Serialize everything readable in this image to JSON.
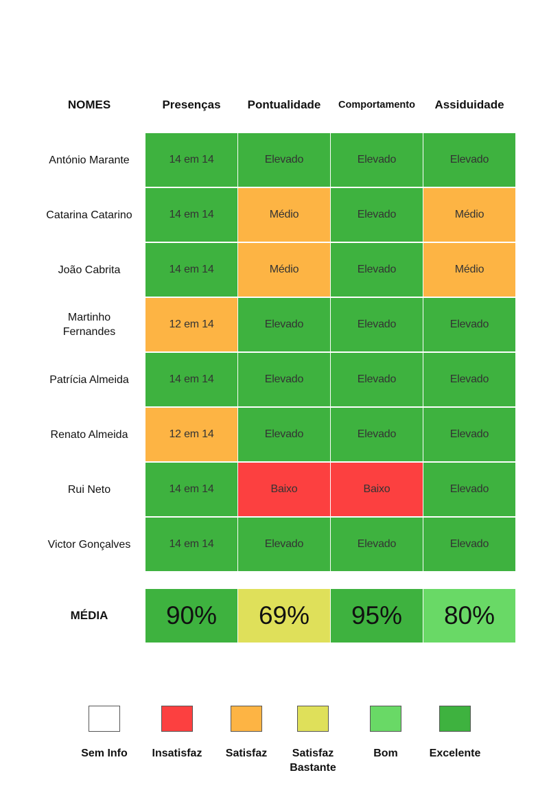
{
  "headers": {
    "names": "NOMES",
    "columns": [
      "Presenças",
      "Pontualidade",
      "Comportamento",
      "Assiduidade"
    ]
  },
  "rows": [
    {
      "name": "António Marante",
      "values": [
        "14 em 14",
        "Elevado",
        "Elevado",
        "Elevado"
      ],
      "levels": [
        "excelente",
        "excelente",
        "excelente",
        "excelente"
      ]
    },
    {
      "name": "Catarina Catarino",
      "values": [
        "14 em 14",
        "Médio",
        "Elevado",
        "Médio"
      ],
      "levels": [
        "excelente",
        "satisfaz",
        "excelente",
        "satisfaz"
      ]
    },
    {
      "name": "João Cabrita",
      "values": [
        "14 em 14",
        "Médio",
        "Elevado",
        "Médio"
      ],
      "levels": [
        "excelente",
        "satisfaz",
        "excelente",
        "satisfaz"
      ]
    },
    {
      "name": "Martinho Fernandes",
      "values": [
        "12 em 14",
        "Elevado",
        "Elevado",
        "Elevado"
      ],
      "levels": [
        "satisfaz",
        "excelente",
        "excelente",
        "excelente"
      ]
    },
    {
      "name": "Patrícia Almeida",
      "values": [
        "14 em 14",
        "Elevado",
        "Elevado",
        "Elevado"
      ],
      "levels": [
        "excelente",
        "excelente",
        "excelente",
        "excelente"
      ]
    },
    {
      "name": "Renato Almeida",
      "values": [
        "12 em 14",
        "Elevado",
        "Elevado",
        "Elevado"
      ],
      "levels": [
        "satisfaz",
        "excelente",
        "excelente",
        "excelente"
      ]
    },
    {
      "name": "Rui Neto",
      "values": [
        "14 em 14",
        "Baixo",
        "Baixo",
        "Elevado"
      ],
      "levels": [
        "excelente",
        "insatisfaz",
        "insatisfaz",
        "excelente"
      ]
    },
    {
      "name": "Victor Gonçalves",
      "values": [
        "14 em 14",
        "Elevado",
        "Elevado",
        "Elevado"
      ],
      "levels": [
        "excelente",
        "excelente",
        "excelente",
        "excelente"
      ]
    }
  ],
  "average": {
    "label": "MÉDIA",
    "values": [
      "90%",
      "69%",
      "95%",
      "80%"
    ],
    "levels": [
      "excelente",
      "satisfaz-bastante",
      "excelente",
      "bom"
    ]
  },
  "legend": [
    {
      "key": "sem-info",
      "label": "Sem Info",
      "color": "#ffffff"
    },
    {
      "key": "insatisfaz",
      "label": "Insatisfaz",
      "color": "#fc4040"
    },
    {
      "key": "satisfaz",
      "label": "Satisfaz",
      "color": "#fdb444"
    },
    {
      "key": "satisfaz-bastante",
      "label": "Satisfaz Bastante",
      "color": "#dfe05a"
    },
    {
      "key": "bom",
      "label": "Bom",
      "color": "#69d966"
    },
    {
      "key": "excelente",
      "label": "Excelente",
      "color": "#3eb23f"
    }
  ],
  "chart_data": {
    "type": "table",
    "columns": [
      "NOMES",
      "Presenças",
      "Pontualidade",
      "Comportamento",
      "Assiduidade"
    ],
    "rows": [
      [
        "António Marante",
        "14 em 14",
        "Elevado",
        "Elevado",
        "Elevado"
      ],
      [
        "Catarina Catarino",
        "14 em 14",
        "Médio",
        "Elevado",
        "Médio"
      ],
      [
        "João Cabrita",
        "14 em 14",
        "Médio",
        "Elevado",
        "Médio"
      ],
      [
        "Martinho Fernandes",
        "12 em 14",
        "Elevado",
        "Elevado",
        "Elevado"
      ],
      [
        "Patrícia Almeida",
        "14 em 14",
        "Elevado",
        "Elevado",
        "Elevado"
      ],
      [
        "Renato Almeida",
        "12 em 14",
        "Elevado",
        "Elevado",
        "Elevado"
      ],
      [
        "Rui Neto",
        "14 em 14",
        "Baixo",
        "Baixo",
        "Elevado"
      ],
      [
        "Victor Gonçalves",
        "14 em 14",
        "Elevado",
        "Elevado",
        "Elevado"
      ]
    ],
    "average_row": [
      "MÉDIA",
      "90%",
      "69%",
      "95%",
      "80%"
    ]
  }
}
